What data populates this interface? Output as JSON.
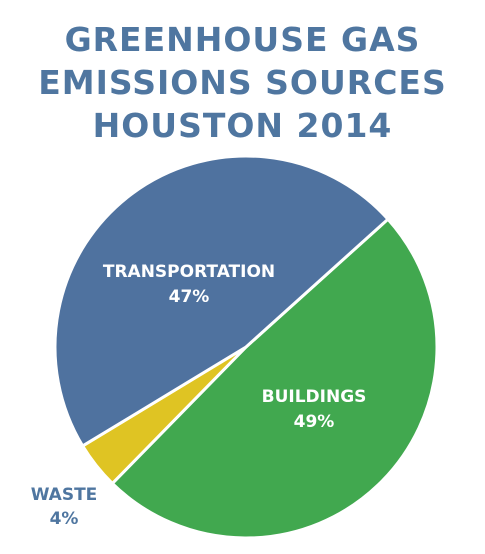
{
  "title_lines": [
    "GREENHOUSE GAS",
    "EMISSIONS SOURCES",
    "HOUSTON 2014"
  ],
  "chart_data": {
    "type": "pie",
    "title": "GREENHOUSE GAS EMISSIONS SOURCES HOUSTON 2014",
    "labels": [
      "TRANSPORTATION",
      "BUILDINGS",
      "WASTE"
    ],
    "values": [
      47,
      49,
      4
    ],
    "value_labels": [
      "47%",
      "49%",
      "4%"
    ],
    "colors": [
      "#4f729f",
      "#41a84f",
      "#dfc423"
    ],
    "label_colors": [
      "#ffffff",
      "#ffffff",
      "#4f76a0"
    ]
  }
}
